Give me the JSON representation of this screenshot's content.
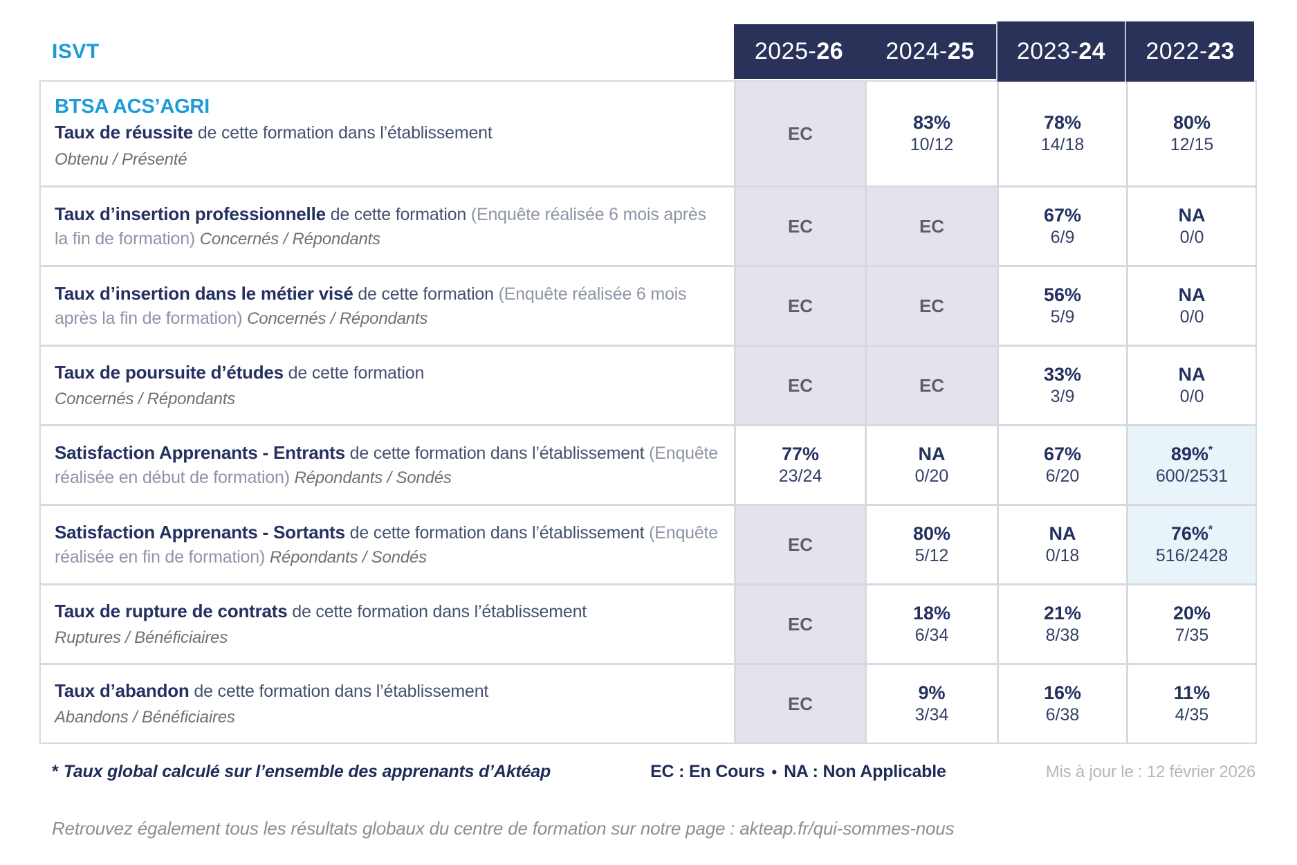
{
  "brand": {
    "org": "ISVT"
  },
  "columns": [
    {
      "prefix": "2025-",
      "bold": "26"
    },
    {
      "prefix": "2024-",
      "bold": "25"
    },
    {
      "prefix": "2023-",
      "bold": "24"
    },
    {
      "prefix": "2022-",
      "bold": "23"
    }
  ],
  "table": {
    "rows": [
      {
        "program": "BTSA ACS’AGRI",
        "title": "Taux de réussite",
        "desc": "de cette formation dans l’établissement",
        "paren": null,
        "subtitle": "Obtenu / Présenté",
        "sub_mode": "block",
        "cells": [
          {
            "top": "EC",
            "variant": "ec"
          },
          {
            "top": "83%",
            "bottom": "10/12",
            "variant": "plain"
          },
          {
            "top": "78%",
            "bottom": "14/18",
            "variant": "plain"
          },
          {
            "top": "80%",
            "bottom": "12/15",
            "variant": "plain"
          }
        ]
      },
      {
        "title": "Taux d’insertion professionnelle",
        "desc": "de cette formation",
        "paren": "(Enquête réalisée 6 mois après la fin de formation)",
        "subtitle": "Concernés / Répondants",
        "sub_mode": "inline",
        "cells": [
          {
            "top": "EC",
            "variant": "ec"
          },
          {
            "top": "EC",
            "variant": "ec"
          },
          {
            "top": "67%",
            "bottom": "6/9",
            "variant": "plain"
          },
          {
            "top": "NA",
            "bottom": "0/0",
            "variant": "plain"
          }
        ]
      },
      {
        "title": "Taux d’insertion dans le métier visé",
        "desc": "de cette formation",
        "paren": "(Enquête réalisée 6 mois après la fin de formation)",
        "subtitle": "Concernés / Répondants",
        "sub_mode": "inline",
        "cells": [
          {
            "top": "EC",
            "variant": "ec"
          },
          {
            "top": "EC",
            "variant": "ec"
          },
          {
            "top": "56%",
            "bottom": "5/9",
            "variant": "plain"
          },
          {
            "top": "NA",
            "bottom": "0/0",
            "variant": "plain"
          }
        ]
      },
      {
        "title": "Taux de poursuite d’études",
        "desc": "de cette formation",
        "paren": null,
        "subtitle": "Concernés / Répondants",
        "sub_mode": "block",
        "cells": [
          {
            "top": "EC",
            "variant": "ec"
          },
          {
            "top": "EC",
            "variant": "ec"
          },
          {
            "top": "33%",
            "bottom": "3/9",
            "variant": "plain"
          },
          {
            "top": "NA",
            "bottom": "0/0",
            "variant": "plain"
          }
        ]
      },
      {
        "title": "Satisfaction Apprenants - Entrants",
        "desc": "de cette formation dans l’établissement",
        "paren": "(Enquête réalisée en début de formation)",
        "subtitle": "Répondants / Sondés",
        "sub_mode": "inline",
        "cells": [
          {
            "top": "77%",
            "bottom": "23/24",
            "variant": "plain"
          },
          {
            "top": "NA",
            "bottom": "0/20",
            "variant": "plain"
          },
          {
            "top": "67%",
            "bottom": "6/20",
            "variant": "plain"
          },
          {
            "top": "89%",
            "star": "*",
            "bottom": "600/2531",
            "variant": "blue"
          }
        ]
      },
      {
        "title": "Satisfaction Apprenants - Sortants",
        "desc": "de cette formation dans l’établissement",
        "paren": "(Enquête réalisée en fin de formation)",
        "subtitle": "Répondants / Sondés",
        "sub_mode": "inline",
        "cells": [
          {
            "top": "EC",
            "variant": "ec"
          },
          {
            "top": "80%",
            "bottom": "5/12",
            "variant": "plain"
          },
          {
            "top": "NA",
            "bottom": "0/18",
            "variant": "plain"
          },
          {
            "top": "76%",
            "star": "*",
            "bottom": "516/2428",
            "variant": "blue"
          }
        ]
      },
      {
        "title": "Taux de rupture de contrats",
        "desc": "de cette formation dans l’établissement",
        "paren": null,
        "subtitle": "Ruptures / Bénéficiaires",
        "sub_mode": "block",
        "cells": [
          {
            "top": "EC",
            "variant": "ec"
          },
          {
            "top": "18%",
            "bottom": "6/34",
            "variant": "plain"
          },
          {
            "top": "21%",
            "bottom": "8/38",
            "variant": "plain"
          },
          {
            "top": "20%",
            "bottom": "7/35",
            "variant": "plain"
          }
        ]
      },
      {
        "title": "Taux d’abandon",
        "desc": "de cette formation dans l’établissement",
        "paren": null,
        "subtitle": "Abandons / Bénéficiaires",
        "sub_mode": "block",
        "cells": [
          {
            "top": "EC",
            "variant": "ec"
          },
          {
            "top": "9%",
            "bottom": "3/34",
            "variant": "plain"
          },
          {
            "top": "16%",
            "bottom": "6/38",
            "variant": "plain"
          },
          {
            "top": "11%",
            "bottom": "4/35",
            "variant": "plain"
          }
        ]
      }
    ]
  },
  "footer": {
    "star": "*",
    "footnote": "Taux global calculé sur l’ensemble des apprenants d’Aktéap",
    "legend_ec": "EC : En Cours",
    "bullet": "•",
    "legend_na": "NA : Non Applicable",
    "updated": "Mis à jour le : 12 février 2026"
  },
  "bottom_note": "Retrouvez également tous les résultats globaux du centre de formation sur notre page : akteap.fr/qui-sommes-nous",
  "colors": {
    "accent_blue": "#1b9cd9",
    "navy": "#243160",
    "header_bg": "#2a3259",
    "ec_cell_bg": "#e4e3ed",
    "highlight_cell_bg": "#e9f3fa",
    "separator": "#d8d9e0"
  }
}
